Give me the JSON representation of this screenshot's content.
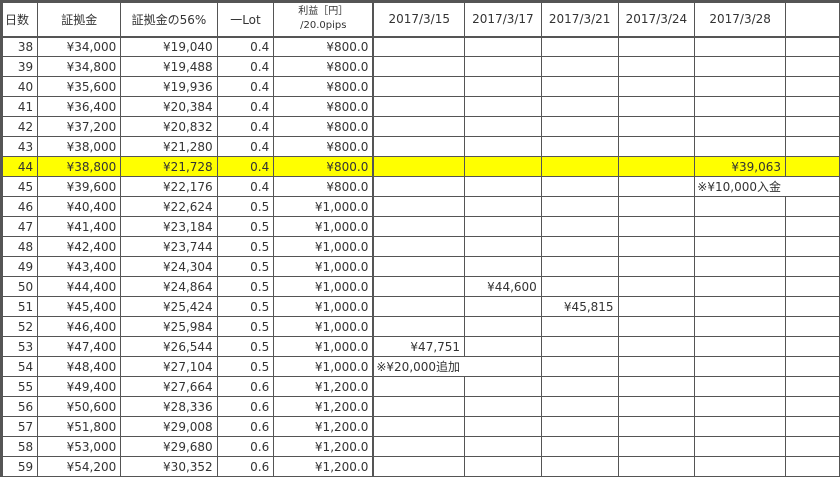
{
  "headers": [
    "日数",
    "証拠金",
    "証拠金の56%",
    "一Lot",
    "利益［円］",
    "/20.0pips",
    "2017/3/15",
    "2017/3/17",
    "2017/3/21",
    "2017/3/24",
    "2017/3/28",
    ""
  ],
  "highlight_color": "#ffff00",
  "highlight_day": "44",
  "rows": [
    {
      "day": "38",
      "margin": "¥34,000",
      "margin56": "¥19,040",
      "lot": "0.4",
      "profit": "¥800.0",
      "d": [
        "",
        "",
        "",
        "",
        ""
      ]
    },
    {
      "day": "39",
      "margin": "¥34,800",
      "margin56": "¥19,488",
      "lot": "0.4",
      "profit": "¥800.0",
      "d": [
        "",
        "",
        "",
        "",
        ""
      ]
    },
    {
      "day": "40",
      "margin": "¥35,600",
      "margin56": "¥19,936",
      "lot": "0.4",
      "profit": "¥800.0",
      "d": [
        "",
        "",
        "",
        "",
        ""
      ]
    },
    {
      "day": "41",
      "margin": "¥36,400",
      "margin56": "¥20,384",
      "lot": "0.4",
      "profit": "¥800.0",
      "d": [
        "",
        "",
        "",
        "",
        ""
      ]
    },
    {
      "day": "42",
      "margin": "¥37,200",
      "margin56": "¥20,832",
      "lot": "0.4",
      "profit": "¥800.0",
      "d": [
        "",
        "",
        "",
        "",
        ""
      ]
    },
    {
      "day": "43",
      "margin": "¥38,000",
      "margin56": "¥21,280",
      "lot": "0.4",
      "profit": "¥800.0",
      "d": [
        "",
        "",
        "",
        "",
        ""
      ]
    },
    {
      "day": "44",
      "margin": "¥38,800",
      "margin56": "¥21,728",
      "lot": "0.4",
      "profit": "¥800.0",
      "d": [
        "",
        "",
        "",
        "",
        "¥39,063"
      ]
    },
    {
      "day": "45",
      "margin": "¥39,600",
      "margin56": "¥22,176",
      "lot": "0.4",
      "profit": "¥800.0",
      "d": [
        "",
        "",
        "",
        "",
        "※¥10,000入金"
      ]
    },
    {
      "day": "46",
      "margin": "¥40,400",
      "margin56": "¥22,624",
      "lot": "0.5",
      "profit": "¥1,000.0",
      "d": [
        "",
        "",
        "",
        "",
        ""
      ]
    },
    {
      "day": "47",
      "margin": "¥41,400",
      "margin56": "¥23,184",
      "lot": "0.5",
      "profit": "¥1,000.0",
      "d": [
        "",
        "",
        "",
        "",
        ""
      ]
    },
    {
      "day": "48",
      "margin": "¥42,400",
      "margin56": "¥23,744",
      "lot": "0.5",
      "profit": "¥1,000.0",
      "d": [
        "",
        "",
        "",
        "",
        ""
      ]
    },
    {
      "day": "49",
      "margin": "¥43,400",
      "margin56": "¥24,304",
      "lot": "0.5",
      "profit": "¥1,000.0",
      "d": [
        "",
        "",
        "",
        "",
        ""
      ]
    },
    {
      "day": "50",
      "margin": "¥44,400",
      "margin56": "¥24,864",
      "lot": "0.5",
      "profit": "¥1,000.0",
      "d": [
        "",
        "¥44,600",
        "",
        "",
        ""
      ]
    },
    {
      "day": "51",
      "margin": "¥45,400",
      "margin56": "¥25,424",
      "lot": "0.5",
      "profit": "¥1,000.0",
      "d": [
        "",
        "",
        "¥45,815",
        "",
        ""
      ]
    },
    {
      "day": "52",
      "margin": "¥46,400",
      "margin56": "¥25,984",
      "lot": "0.5",
      "profit": "¥1,000.0",
      "d": [
        "",
        "",
        "",
        "",
        ""
      ]
    },
    {
      "day": "53",
      "margin": "¥47,400",
      "margin56": "¥26,544",
      "lot": "0.5",
      "profit": "¥1,000.0",
      "d": [
        "¥47,751",
        "",
        "",
        "",
        ""
      ]
    },
    {
      "day": "54",
      "margin": "¥48,400",
      "margin56": "¥27,104",
      "lot": "0.5",
      "profit": "¥1,000.0",
      "d": [
        "※¥20,000追加",
        "",
        "",
        "",
        ""
      ]
    },
    {
      "day": "55",
      "margin": "¥49,400",
      "margin56": "¥27,664",
      "lot": "0.6",
      "profit": "¥1,200.0",
      "d": [
        "",
        "",
        "",
        "",
        ""
      ]
    },
    {
      "day": "56",
      "margin": "¥50,600",
      "margin56": "¥28,336",
      "lot": "0.6",
      "profit": "¥1,200.0",
      "d": [
        "",
        "",
        "",
        "",
        ""
      ]
    },
    {
      "day": "57",
      "margin": "¥51,800",
      "margin56": "¥29,008",
      "lot": "0.6",
      "profit": "¥1,200.0",
      "d": [
        "",
        "",
        "",
        "",
        ""
      ]
    },
    {
      "day": "58",
      "margin": "¥53,000",
      "margin56": "¥29,680",
      "lot": "0.6",
      "profit": "¥1,200.0",
      "d": [
        "",
        "",
        "",
        "",
        ""
      ]
    },
    {
      "day": "59",
      "margin": "¥54,200",
      "margin56": "¥30,352",
      "lot": "0.6",
      "profit": "¥1,200.0",
      "d": [
        "",
        "",
        "",
        "",
        ""
      ]
    }
  ]
}
